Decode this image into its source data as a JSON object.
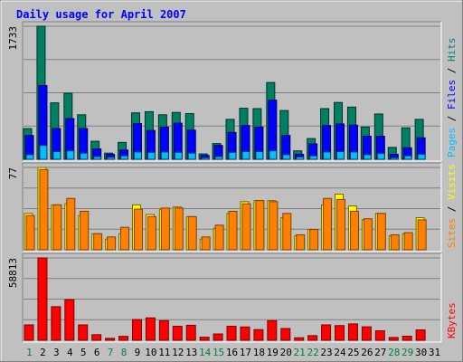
{
  "chart_data": {
    "type": "bar",
    "title": "Daily usage for April 2007",
    "categories": [
      "1",
      "2",
      "3",
      "4",
      "5",
      "6",
      "7",
      "8",
      "9",
      "10",
      "11",
      "12",
      "13",
      "14",
      "15",
      "16",
      "17",
      "18",
      "19",
      "20",
      "21",
      "22",
      "23",
      "24",
      "25",
      "26",
      "27",
      "28",
      "29",
      "30",
      "31"
    ],
    "weekend_days": [
      "1",
      "7",
      "8",
      "14",
      "15",
      "21",
      "22",
      "28",
      "29"
    ],
    "panels": [
      {
        "id": "top",
        "max_label": "1733",
        "ylim": [
          0,
          1733
        ],
        "side_labels": [
          {
            "text": "Pages",
            "color": "#00bfff"
          },
          {
            "text": " / ",
            "color": "#000000"
          },
          {
            "text": "Files",
            "color": "#0000ff"
          },
          {
            "text": " / ",
            "color": "#000000"
          },
          {
            "text": "Hits",
            "color": "#008080"
          }
        ],
        "series": [
          {
            "name": "Hits",
            "color": "#008060",
            "edge": "#003030",
            "values": [
              400,
              1733,
              735,
              860,
              580,
              235,
              80,
              220,
              605,
              620,
              580,
              610,
              595,
              70,
              205,
              520,
              665,
              660,
              1000,
              635,
              110,
              270,
              660,
              740,
              680,
              420,
              590,
              155,
              410,
              520,
              0
            ]
          },
          {
            "name": "Files",
            "color": "#0000ff",
            "edge": "#000060",
            "values": [
              310,
              960,
              400,
              530,
              400,
              135,
              65,
              120,
              465,
              375,
              420,
              470,
              380,
              50,
              180,
              350,
              440,
              420,
              770,
              310,
              65,
              200,
              440,
              460,
              445,
              300,
              300,
              65,
              150,
              280,
              0
            ]
          },
          {
            "name": "Pages",
            "color": "#00bfff",
            "edge": "#004060",
            "values": [
              60,
              180,
              100,
              110,
              80,
              35,
              25,
              45,
              95,
              90,
              95,
              90,
              80,
              20,
              35,
              90,
              100,
              100,
              110,
              60,
              30,
              45,
              95,
              100,
              95,
              60,
              75,
              20,
              45,
              65,
              0
            ]
          }
        ]
      },
      {
        "id": "middle",
        "max_label": "77",
        "ylim": [
          0,
          77
        ],
        "side_labels": [
          {
            "text": "Sites",
            "color": "#ff8000"
          },
          {
            "text": " / ",
            "color": "#000000"
          },
          {
            "text": "Visits",
            "color": "#ffff00"
          }
        ],
        "series": [
          {
            "name": "Visits",
            "color": "#ffff00",
            "edge": "#806000",
            "values": [
              34,
              77,
              42,
              43,
              32,
              15,
              10,
              15,
              42,
              33,
              38,
              40,
              31,
              10,
              20,
              34,
              45,
              46,
              46,
              30,
              13,
              19,
              42,
              52,
              41,
              28,
              34,
              13,
              15,
              30,
              0
            ]
          },
          {
            "name": "Sites",
            "color": "#ff8000",
            "edge": "#804000",
            "values": [
              32,
              75,
              42,
              48,
              36,
              15,
              12,
              21,
              38,
              31,
              39,
              39,
              31,
              12,
              23,
              36,
              43,
              46,
              45,
              34,
              14,
              19,
              48,
              47,
              36,
              29,
              34,
              14,
              16,
              28,
              0
            ]
          }
        ]
      },
      {
        "id": "bottom",
        "max_label": "58813",
        "ylim": [
          0,
          58813
        ],
        "side_labels": [
          {
            "text": "KBytes",
            "color": "#ff0000"
          }
        ],
        "series": [
          {
            "name": "KBytes",
            "color": "#ff0000",
            "edge": "#800000",
            "values": [
              11000,
              58813,
              24000,
              29000,
              11000,
              4000,
              1400,
              2800,
              14800,
              16000,
              14000,
              10000,
              10700,
              2200,
              4500,
              10000,
              9500,
              7600,
              14000,
              8400,
              1800,
              3300,
              11000,
              10500,
              11700,
              9600,
              6800,
              2000,
              2900,
              7400,
              0
            ]
          }
        ]
      }
    ]
  }
}
